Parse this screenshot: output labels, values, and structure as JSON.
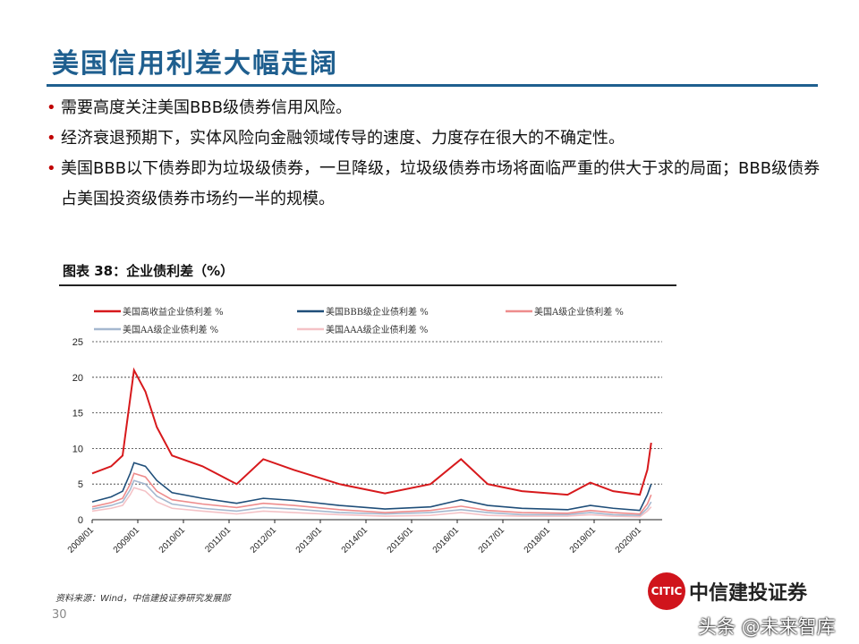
{
  "title": "美国信用利差大幅走阔",
  "bullets": [
    "需要高度关注美国BBB级债券信用风险。",
    "经济衰退预期下，实体风险向金融领域传导的速度、力度存在很大的不确定性。",
    "美国BBB以下债券即为垃圾级债券，一旦降级，垃圾级债券市场将面临严重的供大于求的局面；BBB级债券占美国投资级债券市场约一半的规模。"
  ],
  "figure_title": "图表 38：企业债利差（%）",
  "source": "资料来源：Wind，中信建投证券研究发展部",
  "page_number": "30",
  "logo": {
    "text": "中信建投证券",
    "mark": "CITIC"
  },
  "watermark": "头条 @未来智库",
  "chart_data": {
    "type": "line",
    "ylim": [
      0,
      25
    ],
    "yticks": [
      0,
      5,
      10,
      15,
      20,
      25
    ],
    "grid": "horizontal dashed",
    "legend": "top",
    "xtick_labels": [
      "2008/01",
      "2009/01",
      "2010/01",
      "2011/01",
      "2012/01",
      "2013/01",
      "2014/01",
      "2015/01",
      "2016/01",
      "2017/01",
      "2018/01",
      "2019/01",
      "2020/01"
    ],
    "x": [
      "2008/01",
      "2008/06",
      "2008/09",
      "2008/11",
      "2008/12",
      "2009/03",
      "2009/06",
      "2009/10",
      "2010/06",
      "2011/03",
      "2011/10",
      "2012/06",
      "2013/06",
      "2014/06",
      "2015/06",
      "2016/02",
      "2016/09",
      "2017/06",
      "2018/06",
      "2018/12",
      "2019/06",
      "2020/01",
      "2020/03",
      "2020/04"
    ],
    "series": [
      {
        "name": "美国高收益企业债利差 %",
        "color": "#d7191c",
        "values": [
          6.5,
          7.5,
          9,
          17,
          21,
          18,
          13,
          9,
          7.5,
          5,
          8.5,
          7,
          5,
          3.7,
          5,
          8.5,
          5,
          4,
          3.5,
          5.2,
          4,
          3.5,
          7,
          10.8
        ]
      },
      {
        "name": "美国BBB级企业债利差 %",
        "color": "#1f4e79",
        "values": [
          2.5,
          3.2,
          4,
          6.5,
          8,
          7.5,
          5.5,
          3.8,
          3,
          2.3,
          3,
          2.7,
          2,
          1.5,
          1.8,
          2.8,
          2,
          1.6,
          1.4,
          2,
          1.6,
          1.3,
          3.5,
          5
        ]
      },
      {
        "name": "美国A级企业债利差 %",
        "color": "#ee8c8c",
        "values": [
          1.8,
          2.4,
          3,
          5,
          6.5,
          6,
          4,
          2.8,
          2.2,
          1.7,
          2.3,
          2,
          1.4,
          1,
          1.3,
          1.9,
          1.3,
          1,
          0.9,
          1.3,
          1,
          0.8,
          2.2,
          3.5
        ]
      },
      {
        "name": "美国AA级企业债利差 %",
        "color": "#a5b8cf",
        "values": [
          1.5,
          2,
          2.5,
          4.2,
          5.5,
          5,
          3.3,
          2.2,
          1.6,
          1.2,
          1.7,
          1.5,
          1,
          0.8,
          1,
          1.4,
          1,
          0.7,
          0.7,
          1,
          0.7,
          0.6,
          1.6,
          2.5
        ]
      },
      {
        "name": "美国AAA级企业债利差 %",
        "color": "#f4c2c6",
        "values": [
          1.2,
          1.6,
          2,
          3.5,
          4.5,
          4,
          2.5,
          1.6,
          1.2,
          0.8,
          1.2,
          1,
          0.7,
          0.5,
          0.6,
          1,
          0.6,
          0.5,
          0.5,
          0.7,
          0.5,
          0.4,
          1.2,
          1.8
        ]
      }
    ]
  }
}
